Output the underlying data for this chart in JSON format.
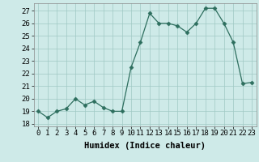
{
  "x": [
    0,
    1,
    2,
    3,
    4,
    5,
    6,
    7,
    8,
    9,
    10,
    11,
    12,
    13,
    14,
    15,
    16,
    17,
    18,
    19,
    20,
    21,
    22,
    23
  ],
  "y": [
    19,
    18.5,
    19,
    19.2,
    20,
    19.5,
    19.8,
    19.3,
    19,
    19,
    22.5,
    24.5,
    26.8,
    26,
    26,
    25.8,
    25.3,
    26,
    27.2,
    27.2,
    26,
    24.5,
    21.2,
    21.3
  ],
  "line_color": "#2d6e5e",
  "marker": "D",
  "marker_size": 2.5,
  "bg_color": "#ceeae8",
  "grid_color": "#a0c8c4",
  "xlabel": "Humidex (Indice chaleur)",
  "ylim": [
    17.8,
    27.6
  ],
  "yticks": [
    18,
    19,
    20,
    21,
    22,
    23,
    24,
    25,
    26,
    27
  ],
  "xticks": [
    0,
    1,
    2,
    3,
    4,
    5,
    6,
    7,
    8,
    9,
    10,
    11,
    12,
    13,
    14,
    15,
    16,
    17,
    18,
    19,
    20,
    21,
    22,
    23
  ],
  "tick_fontsize": 6.5,
  "xlabel_fontsize": 7.5
}
